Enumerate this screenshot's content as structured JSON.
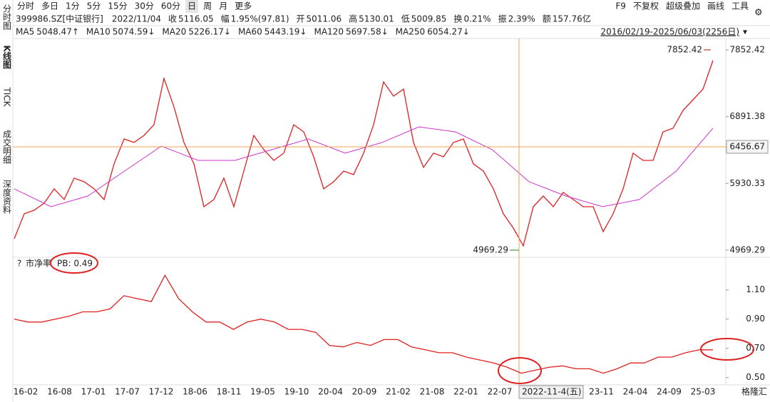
{
  "toolbar": {
    "periods": [
      "分时",
      "多日",
      "1分",
      "5分",
      "15分",
      "30分",
      "60分",
      "日",
      "周",
      "月",
      "更多"
    ],
    "active": "日",
    "right": [
      "F9",
      "不复权",
      "超级叠加",
      "画线",
      "工具"
    ]
  },
  "info": {
    "code": "399986.SZ[中证银行]",
    "date": "2022/11/04",
    "fields": [
      {
        "label": "收",
        "value": "5116.05"
      },
      {
        "label": "幅",
        "value": "1.95%(97.81)"
      },
      {
        "label": "开",
        "value": "5011.06"
      },
      {
        "label": "高",
        "value": "5130.01"
      },
      {
        "label": "低",
        "value": "5009.85"
      },
      {
        "label": "换",
        "value": "0.21%"
      },
      {
        "label": "振",
        "value": "2.39%"
      },
      {
        "label": "额",
        "value": "157.76亿"
      }
    ]
  },
  "ma_legend": [
    {
      "name": "MA5",
      "value": "5048.47↑",
      "color": "#e03030"
    },
    {
      "name": "MA10",
      "value": "5074.59↓",
      "color": "#2f6fd8"
    },
    {
      "name": "MA20",
      "value": "5226.17↓",
      "color": "#2f6fd8"
    },
    {
      "name": "MA60",
      "value": "5443.19↓",
      "color": "#22aacc"
    },
    {
      "name": "MA120",
      "value": "5697.58↓",
      "color": "#2a9a2a"
    },
    {
      "name": "MA250",
      "value": "6054.27↓",
      "color": "#cc33cc"
    }
  ],
  "range": "2016/02/19-2025/06/03(2256日)",
  "sidebar": [
    "分时图",
    "K线图",
    "TICK",
    "成交明细",
    "深度资料"
  ],
  "time_axis": {
    "labels": [
      "16-02",
      "16-08",
      "17-01",
      "17-07",
      "17-12",
      "18-06",
      "18-11",
      "19-05",
      "19-10",
      "20-04",
      "20-09",
      "21-02",
      "21-08",
      "22-01",
      "22-07",
      "23-11",
      "24-04",
      "24-09",
      "25-03"
    ],
    "cursor": "2022-11-4(五)"
  },
  "watermark": "格隆汇",
  "chart_data": [
    {
      "type": "line",
      "ylim": [
        4897,
        8006
      ],
      "yticks": [
        4969.29,
        5930.33,
        6891.38,
        7852.42
      ],
      "high": 7852.42,
      "low": 4969.29,
      "cursor_value": 6456.67,
      "series": [
        {
          "color": "#e02020",
          "values": [
            5133,
            5493,
            5544,
            5646,
            5852,
            5698,
            6006,
            5954,
            5852,
            5698,
            6211,
            6570,
            6519,
            6621,
            6775,
            7442,
            7032,
            6519,
            6211,
            5595,
            5698,
            6006,
            5595,
            6108,
            6621,
            6416,
            6262,
            6365,
            6775,
            6672,
            6313,
            5852,
            5954,
            6108,
            6057,
            6365,
            6775,
            7391,
            7186,
            7288,
            6519,
            6160,
            6365,
            6313,
            6519,
            6570,
            6211,
            6108,
            5852,
            5493,
            5287,
            5031,
            5595,
            5749,
            5595,
            5801,
            5698,
            5595,
            5595,
            5236,
            5493,
            5852,
            6365,
            6262,
            6262,
            6672,
            6724,
            6980,
            7134,
            7288,
            7699
          ]
        },
        {
          "name": "MA250",
          "color": "#cc33cc",
          "values": [
            5852,
            5595,
            5749,
            6108,
            6467,
            6262,
            6262,
            6416,
            6570,
            6365,
            6519,
            6744,
            6672,
            6416,
            5954,
            5749,
            5595,
            5698,
            6108,
            6724
          ]
        }
      ]
    },
    {
      "type": "line",
      "title": "市净率",
      "readout": "PB: 0.49",
      "ylim": [
        0.45,
        1.24
      ],
      "yticks": [
        {
          "value": 0.5,
          "label": "0.50"
        },
        {
          "value": 0.7,
          "label": "0.70"
        },
        {
          "value": 0.9,
          "label": "0.90"
        },
        {
          "value": 1.1,
          "label": "1.10"
        }
      ],
      "series": [
        {
          "color": "#e02020",
          "values": [
            0.9,
            0.88,
            0.88,
            0.9,
            0.92,
            0.95,
            0.95,
            0.97,
            1.06,
            1.04,
            1.02,
            1.2,
            1.04,
            0.95,
            0.88,
            0.88,
            0.83,
            0.88,
            0.9,
            0.88,
            0.83,
            0.83,
            0.81,
            0.72,
            0.71,
            0.74,
            0.72,
            0.76,
            0.76,
            0.71,
            0.69,
            0.67,
            0.67,
            0.64,
            0.62,
            0.6,
            0.57,
            0.53,
            0.55,
            0.57,
            0.58,
            0.56,
            0.56,
            0.53,
            0.56,
            0.6,
            0.6,
            0.64,
            0.64,
            0.67,
            0.69,
            0.69
          ]
        }
      ]
    }
  ]
}
